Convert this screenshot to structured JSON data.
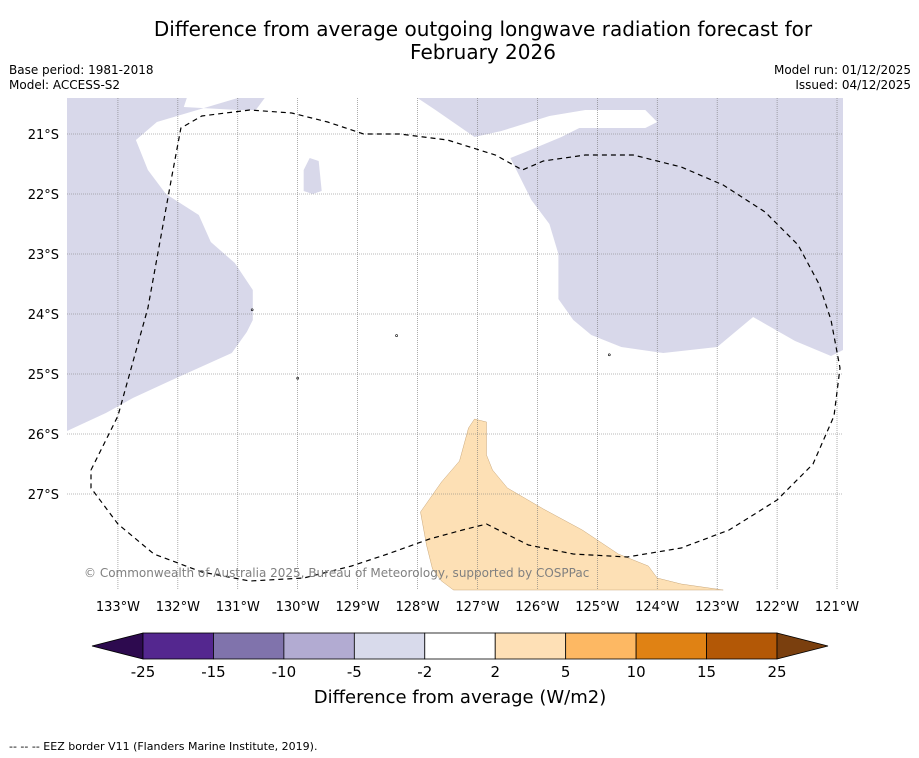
{
  "title_line1": "Difference from average outgoing longwave radiation forecast for",
  "title_line2": "February 2026",
  "base_period": "Base period: 1981-2018",
  "model": "Model: ACCESS-S2",
  "model_run": "Model run: 01/12/2025",
  "issued": "Issued: 04/12/2025",
  "copyright": "© Commonwealth of Australia 2025, Bureau of Meteorology, supported by COSPPac",
  "map_extent": {
    "lon_min": -133.85,
    "lon_max": -120.9,
    "lat_min": -28.6,
    "lat_max": -20.4
  },
  "lat_ticks": [
    {
      "value": -21,
      "label": "21°S"
    },
    {
      "value": -22,
      "label": "22°S"
    },
    {
      "value": -23,
      "label": "23°S"
    },
    {
      "value": -24,
      "label": "24°S"
    },
    {
      "value": -25,
      "label": "25°S"
    },
    {
      "value": -26,
      "label": "26°S"
    },
    {
      "value": -27,
      "label": "27°S"
    }
  ],
  "lon_ticks": [
    {
      "value": -133,
      "label": "133°W"
    },
    {
      "value": -132,
      "label": "132°W"
    },
    {
      "value": -131,
      "label": "131°W"
    },
    {
      "value": -130,
      "label": "130°W"
    },
    {
      "value": -129,
      "label": "129°W"
    },
    {
      "value": -128,
      "label": "128°W"
    },
    {
      "value": -127,
      "label": "127°W"
    },
    {
      "value": -126,
      "label": "126°W"
    },
    {
      "value": -125,
      "label": "125°W"
    },
    {
      "value": -124,
      "label": "124°W"
    },
    {
      "value": -123,
      "label": "123°W"
    },
    {
      "value": -122,
      "label": "122°W"
    },
    {
      "value": -121,
      "label": "121°W"
    }
  ],
  "regions": [
    {
      "name": "region-west-light-purple",
      "class": "-5 to -2",
      "color": "#d8d8ea",
      "points": [
        [
          -133.85,
          -20.4
        ],
        [
          -131.85,
          -20.4
        ],
        [
          -131.9,
          -20.55
        ],
        [
          -131.0,
          -20.6
        ],
        [
          -130.7,
          -20.6
        ],
        [
          -130.55,
          -20.4
        ],
        [
          -130.3,
          -20.4
        ],
        [
          -131.0,
          -20.4
        ],
        [
          -132.35,
          -20.8
        ],
        [
          -132.7,
          -21.1
        ],
        [
          -132.5,
          -21.6
        ],
        [
          -132.2,
          -22.0
        ],
        [
          -131.65,
          -22.35
        ],
        [
          -131.45,
          -22.8
        ],
        [
          -131.05,
          -23.15
        ],
        [
          -130.75,
          -23.6
        ],
        [
          -130.75,
          -24.1
        ],
        [
          -130.85,
          -24.3
        ],
        [
          -131.1,
          -24.65
        ],
        [
          -132.1,
          -25.1
        ],
        [
          -132.75,
          -25.4
        ],
        [
          -133.2,
          -25.65
        ],
        [
          -133.85,
          -25.95
        ]
      ]
    },
    {
      "name": "region-small-light-purple",
      "class": "-5 to -2",
      "color": "#d8d8ea",
      "points": [
        [
          -129.8,
          -21.4
        ],
        [
          -129.65,
          -21.45
        ],
        [
          -129.6,
          -21.95
        ],
        [
          -129.75,
          -22.0
        ],
        [
          -129.9,
          -21.95
        ],
        [
          -129.9,
          -21.6
        ]
      ]
    },
    {
      "name": "region-east-light-purple",
      "class": "-5 to -2",
      "color": "#d8d8ea",
      "points": [
        [
          -128.0,
          -20.4
        ],
        [
          -120.9,
          -20.4
        ],
        [
          -120.9,
          -24.6
        ],
        [
          -121.1,
          -24.7
        ],
        [
          -121.7,
          -24.45
        ],
        [
          -122.4,
          -24.05
        ],
        [
          -123.0,
          -24.55
        ],
        [
          -123.9,
          -24.65
        ],
        [
          -124.6,
          -24.55
        ],
        [
          -125.1,
          -24.35
        ],
        [
          -125.4,
          -24.1
        ],
        [
          -125.65,
          -23.75
        ],
        [
          -125.65,
          -23.0
        ],
        [
          -125.8,
          -22.5
        ],
        [
          -126.1,
          -22.1
        ],
        [
          -126.3,
          -21.7
        ],
        [
          -126.45,
          -21.4
        ],
        [
          -126.2,
          -21.3
        ],
        [
          -125.6,
          -21.05
        ],
        [
          -125.3,
          -20.9
        ],
        [
          -124.2,
          -20.9
        ],
        [
          -124.0,
          -20.8
        ],
        [
          -124.2,
          -20.6
        ],
        [
          -124.6,
          -20.6
        ],
        [
          -125.2,
          -20.6
        ],
        [
          -125.8,
          -20.7
        ],
        [
          -126.6,
          -20.95
        ],
        [
          -127.05,
          -21.05
        ],
        [
          -127.7,
          -20.6
        ]
      ]
    },
    {
      "name": "region-south-light-orange",
      "class": "2 to 5",
      "color": "#fde0b5",
      "points": [
        [
          -126.8,
          -28.6
        ],
        [
          -122.9,
          -28.6
        ],
        [
          -123.6,
          -28.5
        ],
        [
          -124.0,
          -28.4
        ],
        [
          -124.15,
          -28.2
        ],
        [
          -124.65,
          -28.0
        ],
        [
          -125.25,
          -27.6
        ],
        [
          -125.9,
          -27.25
        ],
        [
          -126.5,
          -26.9
        ],
        [
          -126.75,
          -26.6
        ],
        [
          -126.85,
          -26.35
        ],
        [
          -126.85,
          -25.8
        ],
        [
          -127.05,
          -25.75
        ],
        [
          -127.15,
          -25.9
        ],
        [
          -127.3,
          -26.45
        ],
        [
          -127.6,
          -26.8
        ],
        [
          -127.95,
          -27.3
        ],
        [
          -127.85,
          -27.85
        ],
        [
          -127.75,
          -28.25
        ],
        [
          -127.6,
          -28.45
        ],
        [
          -127.4,
          -28.6
        ]
      ]
    }
  ],
  "eez_border": [
    [
      -133.45,
      -26.6
    ],
    [
      -133.0,
      -25.7
    ],
    [
      -132.5,
      -23.9
    ],
    [
      -132.1,
      -21.7
    ],
    [
      -131.95,
      -20.9
    ],
    [
      -131.6,
      -20.7
    ],
    [
      -130.8,
      -20.6
    ],
    [
      -130.1,
      -20.65
    ],
    [
      -129.5,
      -20.8
    ],
    [
      -128.9,
      -21.0
    ],
    [
      -128.3,
      -21.0
    ],
    [
      -127.5,
      -21.1
    ],
    [
      -126.7,
      -21.35
    ],
    [
      -126.25,
      -21.6
    ],
    [
      -125.9,
      -21.45
    ],
    [
      -125.2,
      -21.35
    ],
    [
      -124.4,
      -21.35
    ],
    [
      -123.6,
      -21.55
    ],
    [
      -122.9,
      -21.85
    ],
    [
      -122.2,
      -22.3
    ],
    [
      -121.65,
      -22.85
    ],
    [
      -121.3,
      -23.5
    ],
    [
      -121.1,
      -24.1
    ],
    [
      -120.95,
      -24.9
    ],
    [
      -121.05,
      -25.7
    ],
    [
      -121.4,
      -26.5
    ],
    [
      -122.0,
      -27.1
    ],
    [
      -122.8,
      -27.6
    ],
    [
      -123.6,
      -27.9
    ],
    [
      -124.5,
      -28.05
    ],
    [
      -125.4,
      -28.0
    ],
    [
      -126.15,
      -27.85
    ],
    [
      -126.85,
      -27.5
    ],
    [
      -127.25,
      -27.6
    ],
    [
      -127.8,
      -27.75
    ],
    [
      -128.5,
      -28.0
    ],
    [
      -129.1,
      -28.2
    ],
    [
      -129.9,
      -28.4
    ],
    [
      -130.8,
      -28.45
    ],
    [
      -131.6,
      -28.3
    ],
    [
      -132.4,
      -28.0
    ],
    [
      -133.0,
      -27.5
    ],
    [
      -133.45,
      -26.9
    ],
    [
      -133.45,
      -26.6
    ]
  ],
  "small_islands": [
    [
      -130.76,
      -23.93
    ],
    [
      -128.35,
      -24.36
    ],
    [
      -124.8,
      -24.68
    ],
    [
      -130.0,
      -25.07
    ]
  ],
  "colorbar": {
    "title": "Difference from average (W/m2)",
    "low_extend_color": "#2d0a4f",
    "high_extend_color": "#7a3f0e",
    "bins": [
      {
        "from": -25,
        "to": -15,
        "color": "#54278f"
      },
      {
        "from": -15,
        "to": -10,
        "color": "#8073ac"
      },
      {
        "from": -10,
        "to": -5,
        "color": "#b2abd2"
      },
      {
        "from": -5,
        "to": -2,
        "color": "#d8daeb"
      },
      {
        "from": -2,
        "to": 2,
        "color": "#ffffff"
      },
      {
        "from": 2,
        "to": 5,
        "color": "#fee0b6"
      },
      {
        "from": 5,
        "to": 10,
        "color": "#fdb863"
      },
      {
        "from": 10,
        "to": 15,
        "color": "#e08214"
      },
      {
        "from": 15,
        "to": 25,
        "color": "#b35806"
      }
    ],
    "tick_labels": [
      "-25",
      "-15",
      "-10",
      "-5",
      "-2",
      "2",
      "5",
      "10",
      "15",
      "25"
    ]
  },
  "legend_note": "--  --  -- EEZ border V11 (Flanders Marine Institute, 2019)."
}
